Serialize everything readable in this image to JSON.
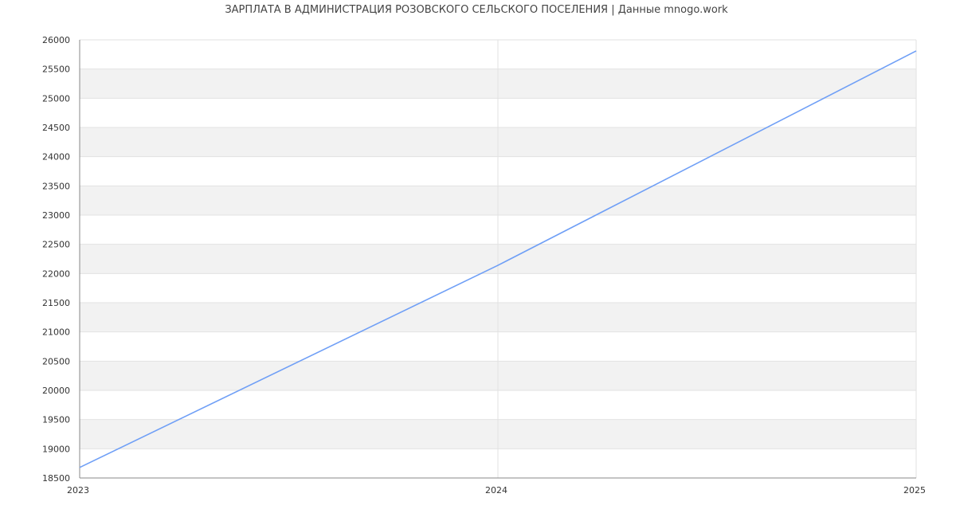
{
  "chart_data": {
    "type": "line",
    "title": "ЗАРПЛАТА В АДМИНИСТРАЦИЯ РОЗОВСКОГО СЕЛЬСКОГО ПОСЕЛЕНИЯ | Данные mnogo.work",
    "xlabel": "",
    "ylabel": "",
    "x": [
      "2023",
      "2024",
      "2025"
    ],
    "series": [
      {
        "values": [
          18680,
          22140,
          25810
        ],
        "color": "#6f9ff6"
      }
    ],
    "ylim": [
      18500,
      26000
    ],
    "yticks": [
      18500,
      19000,
      19500,
      20000,
      20500,
      21000,
      21500,
      22000,
      22500,
      23000,
      23500,
      24000,
      24500,
      25000,
      25500,
      26000
    ],
    "grid": true,
    "band_color": "#f2f2f2"
  }
}
